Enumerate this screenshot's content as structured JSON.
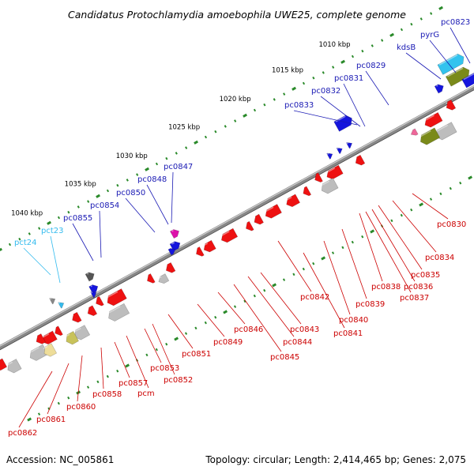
{
  "title": "Candidatus Protochlamydia amoebophila UWE25, complete genome",
  "footer": {
    "accession": "Accession: NC_005861",
    "summary": "Topology: circular; Length: 2,414,465 bp; Genes: 2,075"
  },
  "colors": {
    "forward_label": "#1a1ab4",
    "reverse_label": "#cc0000",
    "rna_label": "#33bbee",
    "backbone": "#888888",
    "tick": "#2a8a2a"
  },
  "kbp_marks": [
    {
      "label": "1010 kbp",
      "t": 0.8
    },
    {
      "label": "1015 kbp",
      "t": 0.704
    },
    {
      "label": "1020 kbp",
      "t": 0.597
    },
    {
      "label": "1025 kbp",
      "t": 0.493
    },
    {
      "label": "1030 kbp",
      "t": 0.386
    },
    {
      "label": "1035 kbp",
      "t": 0.281
    },
    {
      "label": "1040 kbp",
      "t": 0.172
    }
  ],
  "top_labels": [
    {
      "text": "pc0823",
      "kind": "forward"
    },
    {
      "text": "pyrG",
      "kind": "forward"
    },
    {
      "text": "kdsB",
      "kind": "forward"
    },
    {
      "text": "pc0829",
      "kind": "forward"
    },
    {
      "text": "pc0831",
      "kind": "forward"
    },
    {
      "text": "pc0832",
      "kind": "forward"
    },
    {
      "text": "pc0833",
      "kind": "forward"
    },
    {
      "text": "pc0847",
      "kind": "forward"
    },
    {
      "text": "pc0848",
      "kind": "forward"
    },
    {
      "text": "pc0850",
      "kind": "forward"
    },
    {
      "text": "pc0854",
      "kind": "forward"
    },
    {
      "text": "pc0855",
      "kind": "forward"
    },
    {
      "text": "pct23",
      "kind": "rna"
    },
    {
      "text": "pct24",
      "kind": "rna"
    }
  ],
  "bottom_labels": [
    {
      "text": "pc0830"
    },
    {
      "text": "pc0834"
    },
    {
      "text": "pc0835"
    },
    {
      "text": "pc0836"
    },
    {
      "text": "pc0837"
    },
    {
      "text": "pc0838"
    },
    {
      "text": "pc0839"
    },
    {
      "text": "pc0840"
    },
    {
      "text": "pc0841"
    },
    {
      "text": "pc0842"
    },
    {
      "text": "pc0843"
    },
    {
      "text": "pc0844"
    },
    {
      "text": "pc0845"
    },
    {
      "text": "pc0846"
    },
    {
      "text": "pc0849"
    },
    {
      "text": "pc0851"
    },
    {
      "text": "pc0852"
    },
    {
      "text": "pc0853"
    },
    {
      "text": "pcm"
    },
    {
      "text": "pc0857"
    },
    {
      "text": "pc0858"
    },
    {
      "text": "pc0860"
    },
    {
      "text": "pc0861"
    },
    {
      "text": "pc0862"
    }
  ]
}
